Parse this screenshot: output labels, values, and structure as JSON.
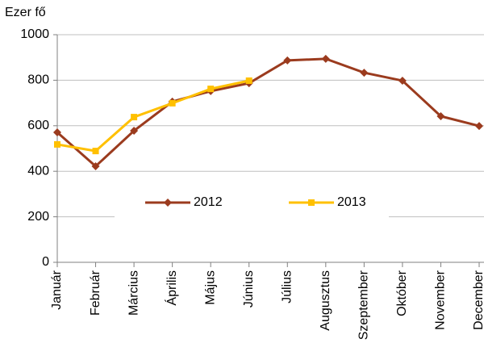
{
  "chart_data": {
    "type": "line",
    "y_label": "Ezer fő",
    "categories": [
      "Január",
      "Február",
      "Március",
      "Április",
      "Május",
      "Június",
      "Július",
      "Augusztus",
      "Szeptember",
      "Október",
      "November",
      "December"
    ],
    "series": [
      {
        "name": "2012",
        "color": "#9b3b1e",
        "marker": "diamond",
        "values": [
          571,
          422,
          578,
          706,
          752,
          787,
          887,
          894,
          833,
          798,
          642,
          599
        ]
      },
      {
        "name": "2013",
        "color": "#ffc000",
        "marker": "square",
        "values": [
          518,
          489,
          638,
          699,
          762,
          798,
          null,
          null,
          null,
          null,
          null,
          null
        ]
      }
    ],
    "ylim": [
      0,
      1000
    ],
    "yticks": [
      0,
      200,
      400,
      600,
      800,
      1000
    ],
    "grid": true,
    "legend": "center"
  }
}
